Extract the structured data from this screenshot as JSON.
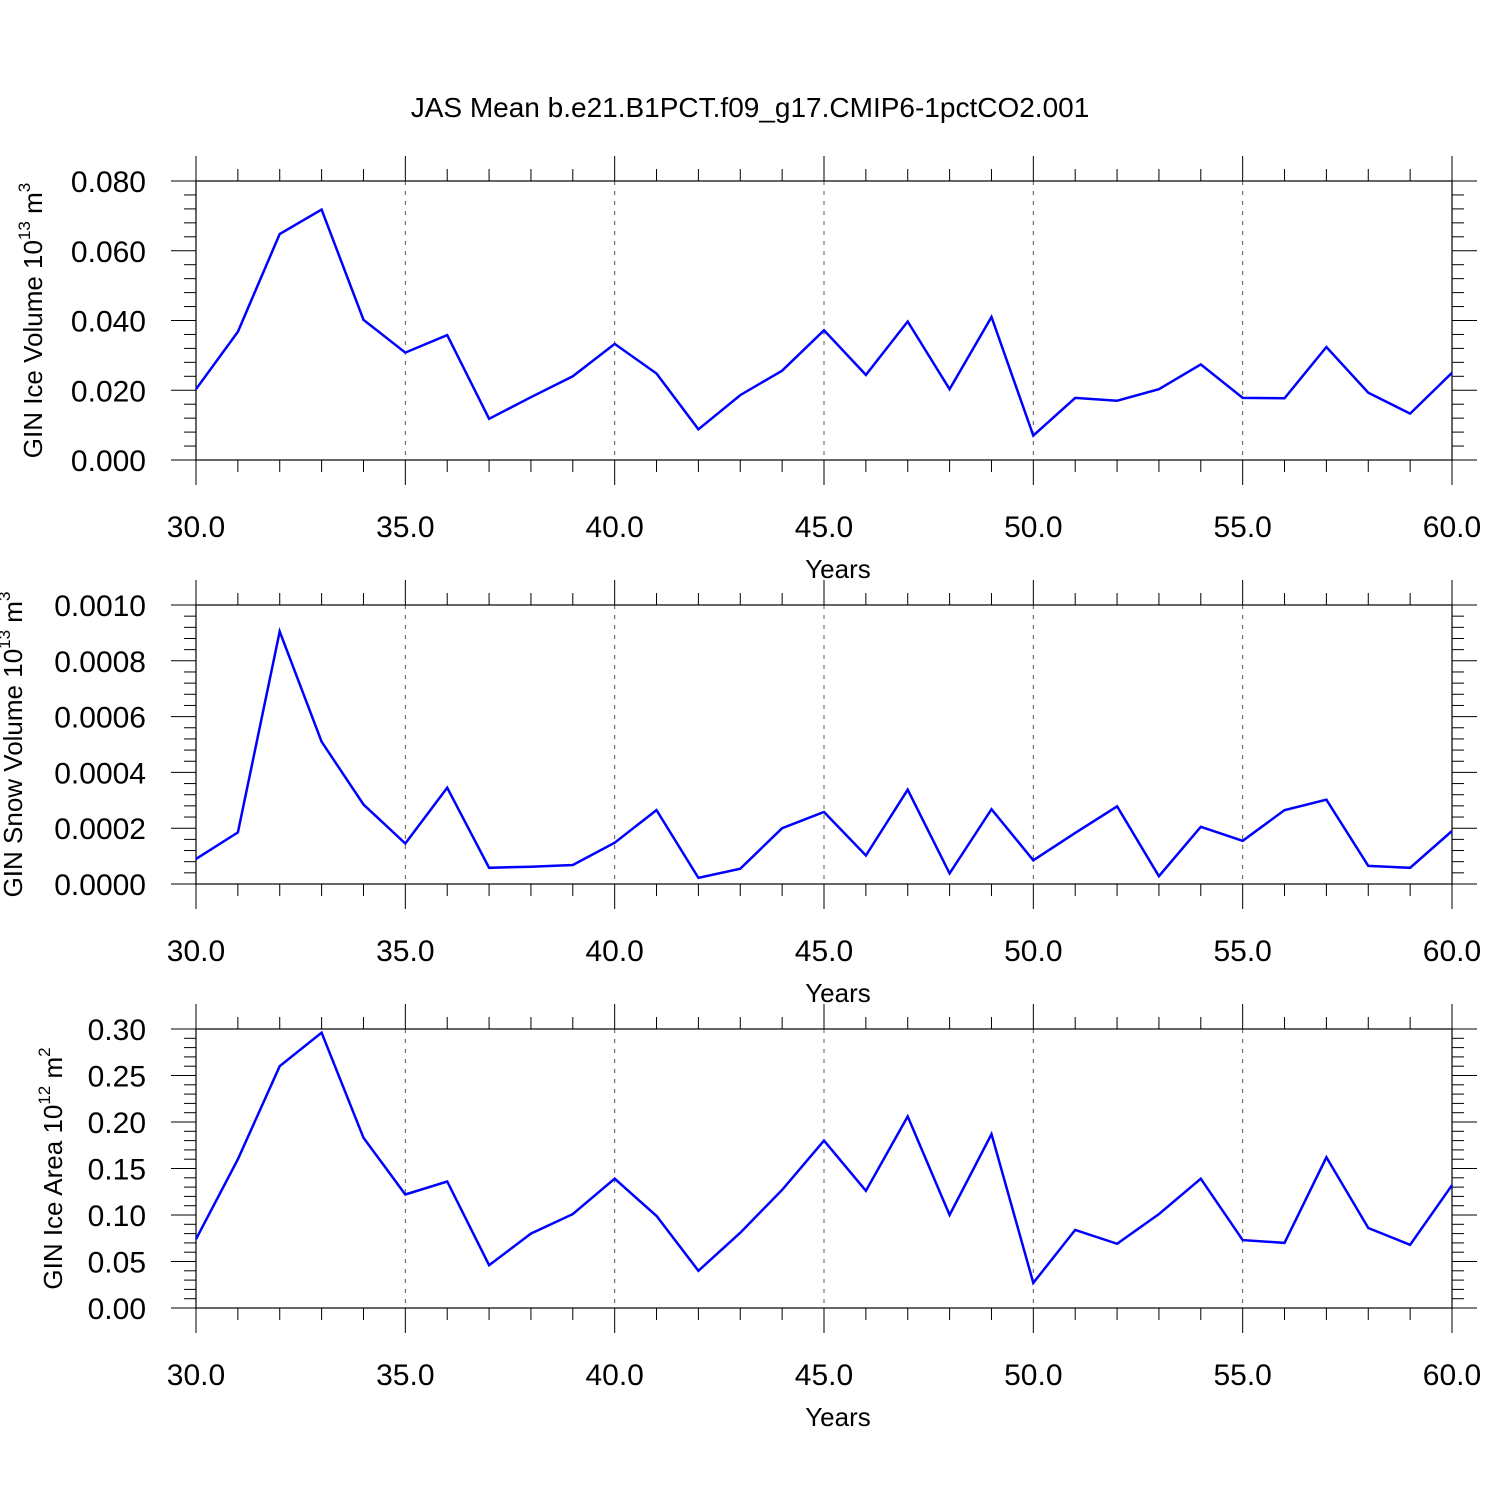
{
  "title": "JAS Mean b.e21.B1PCT.f09_g17.CMIP6-1pctCO2.001",
  "line_color": "#0000ff",
  "chart_data": [
    {
      "type": "line",
      "xlabel": "Years",
      "ylabel": {
        "text": "GIN Ice Volume 10",
        "exp": "13",
        "unit": " m",
        "unit_exp": "3"
      },
      "xlim": [
        30,
        60
      ],
      "ylim": [
        0,
        0.08
      ],
      "xticks": [
        "30.0",
        "35.0",
        "40.0",
        "45.0",
        "50.0",
        "55.0",
        "60.0"
      ],
      "xtick_values": [
        30,
        35,
        40,
        45,
        50,
        55,
        60
      ],
      "yticks": [
        "0.000",
        "0.020",
        "0.040",
        "0.060",
        "0.080"
      ],
      "ytick_values": [
        0,
        0.02,
        0.04,
        0.06,
        0.08
      ],
      "grid": "vertical dashed at major x ticks",
      "x": [
        30,
        31,
        32,
        33,
        34,
        35,
        36,
        37,
        38,
        39,
        40,
        41,
        42,
        43,
        44,
        45,
        46,
        47,
        48,
        49,
        50,
        51,
        52,
        53,
        54,
        55,
        56,
        57,
        58,
        59,
        60
      ],
      "values": [
        0.0203,
        0.0368,
        0.0648,
        0.0718,
        0.0402,
        0.0308,
        0.0358,
        0.0118,
        0.018,
        0.024,
        0.0333,
        0.0248,
        0.0088,
        0.0186,
        0.0256,
        0.0372,
        0.0244,
        0.0397,
        0.0203,
        0.041,
        0.007,
        0.0178,
        0.017,
        0.0203,
        0.0274,
        0.0178,
        0.0177,
        0.0324,
        0.0193,
        0.0133,
        0.025
      ]
    },
    {
      "type": "line",
      "xlabel": "Years",
      "ylabel": {
        "text": "GIN Snow Volume 10",
        "exp": "13",
        "unit": " m",
        "unit_exp": "3"
      },
      "xlim": [
        30,
        60
      ],
      "ylim": [
        0,
        0.001
      ],
      "xticks": [
        "30.0",
        "35.0",
        "40.0",
        "45.0",
        "50.0",
        "55.0",
        "60.0"
      ],
      "xtick_values": [
        30,
        35,
        40,
        45,
        50,
        55,
        60
      ],
      "yticks": [
        "0.0000",
        "0.0002",
        "0.0004",
        "0.0006",
        "0.0008",
        "0.0010"
      ],
      "ytick_values": [
        0,
        0.0002,
        0.0004,
        0.0006,
        0.0008,
        0.001
      ],
      "grid": "vertical dashed at major x ticks",
      "x": [
        30,
        31,
        32,
        33,
        34,
        35,
        36,
        37,
        38,
        39,
        40,
        41,
        42,
        43,
        44,
        45,
        46,
        47,
        48,
        49,
        50,
        51,
        52,
        53,
        54,
        55,
        56,
        57,
        58,
        59,
        60
      ],
      "values": [
        9e-05,
        0.000185,
        0.000905,
        0.00051,
        0.000285,
        0.000145,
        0.000345,
        5.8e-05,
        6.2e-05,
        6.8e-05,
        0.000148,
        0.000265,
        2.2e-05,
        5.5e-05,
        0.0002,
        0.000258,
        0.000102,
        0.000338,
        3.8e-05,
        0.000268,
        8.5e-05,
        0.000183,
        0.000278,
        2.8e-05,
        0.000205,
        0.000155,
        0.000265,
        0.000302,
        6.5e-05,
        5.8e-05,
        0.00019
      ]
    },
    {
      "type": "line",
      "xlabel": "Years",
      "ylabel": {
        "text": "GIN Ice Area 10",
        "exp": "12",
        "unit": " m",
        "unit_exp": "2"
      },
      "xlim": [
        30,
        60
      ],
      "ylim": [
        0,
        0.3
      ],
      "xticks": [
        "30.0",
        "35.0",
        "40.0",
        "45.0",
        "50.0",
        "55.0",
        "60.0"
      ],
      "xtick_values": [
        30,
        35,
        40,
        45,
        50,
        55,
        60
      ],
      "yticks": [
        "0.00",
        "0.05",
        "0.10",
        "0.15",
        "0.20",
        "0.25",
        "0.30"
      ],
      "ytick_values": [
        0,
        0.05,
        0.1,
        0.15,
        0.2,
        0.25,
        0.3
      ],
      "grid": "vertical dashed at major x ticks",
      "x": [
        30,
        31,
        32,
        33,
        34,
        35,
        36,
        37,
        38,
        39,
        40,
        41,
        42,
        43,
        44,
        45,
        46,
        47,
        48,
        49,
        50,
        51,
        52,
        53,
        54,
        55,
        56,
        57,
        58,
        59,
        60
      ],
      "values": [
        0.074,
        0.16,
        0.26,
        0.296,
        0.183,
        0.122,
        0.136,
        0.046,
        0.08,
        0.101,
        0.139,
        0.099,
        0.04,
        0.081,
        0.127,
        0.18,
        0.126,
        0.206,
        0.1,
        0.187,
        0.027,
        0.084,
        0.069,
        0.101,
        0.139,
        0.073,
        0.07,
        0.162,
        0.086,
        0.068,
        0.132
      ]
    }
  ]
}
